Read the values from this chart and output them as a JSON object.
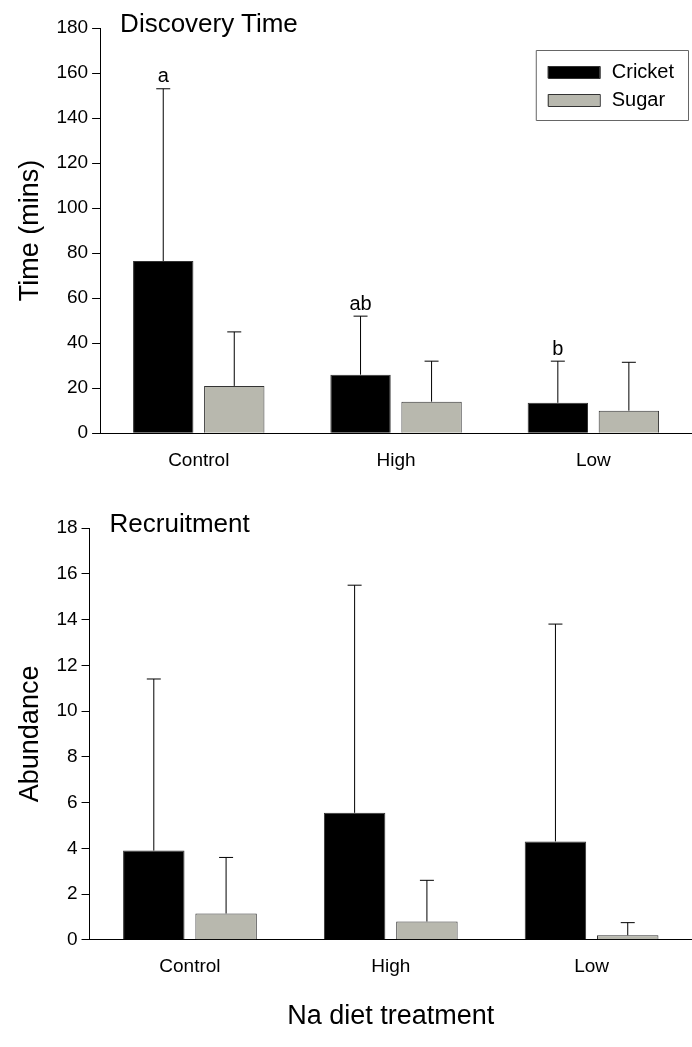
{
  "chart_data": [
    {
      "type": "bar",
      "title": "Discovery Time",
      "ylabel": "Time (mins)",
      "categories": [
        "Control",
        "High",
        "Low"
      ],
      "series": [
        {
          "name": "Cricket",
          "color": "#000000",
          "values": [
            76.5,
            26,
            13.5
          ],
          "errors": [
            [
              76.5,
              153
            ],
            [
              26,
              52
            ],
            [
              13.5,
              32
            ]
          ]
        },
        {
          "name": "Sugar",
          "color": "#b8b8ae",
          "values": [
            21,
            14,
            10
          ],
          "errors": [
            [
              21,
              45
            ],
            [
              14,
              32
            ],
            [
              10,
              31.5
            ]
          ]
        }
      ],
      "ylim": [
        0,
        180
      ],
      "yticks": [
        0,
        20,
        40,
        60,
        80,
        100,
        120,
        140,
        160,
        180
      ],
      "grid": false,
      "legend": "top right",
      "annotations": [
        "a",
        "ab",
        "b"
      ]
    },
    {
      "type": "bar",
      "title": "Recruitment",
      "ylabel": "Abundance",
      "xlabel": "Na diet treatment",
      "categories": [
        "Control",
        "High",
        "Low"
      ],
      "series": [
        {
          "color": "#000000",
          "values": [
            3.9,
            5.55,
            4.3
          ],
          "errors": [
            [
              3.9,
              11.4
            ],
            [
              5.55,
              15.5
            ],
            [
              4.3,
              13.8
            ]
          ]
        },
        {
          "color": "#b8b8ae",
          "values": [
            1.15,
            0.8,
            0.2
          ],
          "errors": [
            [
              1.15,
              3.6
            ],
            [
              0.8,
              2.6
            ],
            [
              0.2,
              0.75
            ]
          ]
        }
      ],
      "ylim": [
        0,
        18
      ],
      "yticks": [
        0,
        2,
        4,
        6,
        8,
        10,
        12,
        14,
        16,
        18
      ],
      "grid": false,
      "legend": false
    }
  ]
}
